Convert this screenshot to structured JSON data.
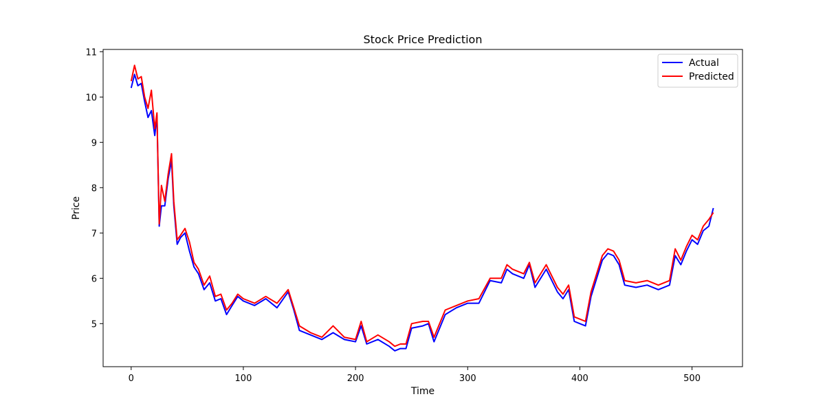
{
  "chart_data": {
    "type": "line",
    "title": "Stock Price Prediction",
    "xlabel": "Time",
    "ylabel": "Price",
    "xlim": [
      -25,
      545
    ],
    "ylim": [
      4.05,
      11.05
    ],
    "xticks": [
      0,
      100,
      200,
      300,
      400,
      500
    ],
    "yticks": [
      5,
      6,
      7,
      8,
      9,
      10,
      11
    ],
    "grid": false,
    "legend_position": "top-right",
    "series": [
      {
        "name": "Actual",
        "color": "#0000ff",
        "x": [
          0,
          3,
          6,
          9,
          12,
          15,
          18,
          21,
          23,
          25,
          27,
          30,
          33,
          36,
          38,
          41,
          44,
          48,
          52,
          56,
          60,
          65,
          70,
          75,
          80,
          85,
          90,
          95,
          100,
          110,
          120,
          130,
          140,
          145,
          150,
          160,
          170,
          180,
          190,
          200,
          205,
          210,
          220,
          230,
          235,
          240,
          245,
          250,
          260,
          265,
          270,
          280,
          290,
          300,
          310,
          320,
          330,
          335,
          340,
          350,
          355,
          360,
          370,
          380,
          385,
          390,
          395,
          400,
          405,
          410,
          415,
          420,
          425,
          430,
          435,
          440,
          450,
          460,
          470,
          480,
          485,
          490,
          495,
          500,
          505,
          510,
          515,
          519
        ],
        "y": [
          10.2,
          10.5,
          10.25,
          10.3,
          9.9,
          9.55,
          9.7,
          9.15,
          9.6,
          7.15,
          7.6,
          7.6,
          8.2,
          8.6,
          7.6,
          6.75,
          6.9,
          7.0,
          6.6,
          6.25,
          6.1,
          5.75,
          5.9,
          5.5,
          5.55,
          5.2,
          5.4,
          5.6,
          5.5,
          5.4,
          5.55,
          5.35,
          5.7,
          5.3,
          4.85,
          4.75,
          4.65,
          4.8,
          4.65,
          4.6,
          4.95,
          4.55,
          4.65,
          4.5,
          4.4,
          4.45,
          4.45,
          4.9,
          4.95,
          5.0,
          4.6,
          5.2,
          5.35,
          5.45,
          5.45,
          5.95,
          5.9,
          6.2,
          6.1,
          6.0,
          6.3,
          5.8,
          6.2,
          5.7,
          5.55,
          5.75,
          5.05,
          5.0,
          4.95,
          5.6,
          6.0,
          6.4,
          6.55,
          6.5,
          6.3,
          5.85,
          5.8,
          5.85,
          5.75,
          5.85,
          6.5,
          6.3,
          6.6,
          6.85,
          6.75,
          7.05,
          7.15,
          7.55
        ]
      },
      {
        "name": "Predicted",
        "color": "#ff0000",
        "x": [
          0,
          3,
          6,
          9,
          12,
          15,
          18,
          21,
          23,
          25,
          27,
          30,
          33,
          36,
          38,
          41,
          44,
          48,
          52,
          56,
          60,
          65,
          70,
          75,
          80,
          85,
          90,
          95,
          100,
          110,
          120,
          130,
          140,
          145,
          150,
          160,
          170,
          180,
          190,
          200,
          205,
          210,
          220,
          230,
          235,
          240,
          245,
          250,
          260,
          265,
          270,
          280,
          290,
          300,
          310,
          320,
          330,
          335,
          340,
          350,
          355,
          360,
          370,
          380,
          385,
          390,
          395,
          400,
          405,
          410,
          415,
          420,
          425,
          430,
          435,
          440,
          450,
          460,
          470,
          480,
          485,
          490,
          495,
          500,
          505,
          510,
          515,
          519
        ],
        "y": [
          10.35,
          10.7,
          10.4,
          10.45,
          10.0,
          9.75,
          10.15,
          9.3,
          9.65,
          7.2,
          8.05,
          7.7,
          8.3,
          8.75,
          7.7,
          6.85,
          6.95,
          7.1,
          6.8,
          6.35,
          6.2,
          5.85,
          6.05,
          5.6,
          5.65,
          5.3,
          5.45,
          5.65,
          5.55,
          5.45,
          5.6,
          5.45,
          5.75,
          5.35,
          4.95,
          4.8,
          4.7,
          4.95,
          4.7,
          4.65,
          5.05,
          4.6,
          4.75,
          4.6,
          4.5,
          4.55,
          4.55,
          5.0,
          5.05,
          5.05,
          4.7,
          5.3,
          5.4,
          5.5,
          5.55,
          6.0,
          6.0,
          6.3,
          6.2,
          6.1,
          6.35,
          5.9,
          6.3,
          5.8,
          5.65,
          5.85,
          5.15,
          5.1,
          5.05,
          5.7,
          6.1,
          6.5,
          6.65,
          6.6,
          6.4,
          5.95,
          5.9,
          5.95,
          5.85,
          5.95,
          6.65,
          6.4,
          6.7,
          6.95,
          6.85,
          7.15,
          7.3,
          7.45
        ]
      }
    ]
  }
}
